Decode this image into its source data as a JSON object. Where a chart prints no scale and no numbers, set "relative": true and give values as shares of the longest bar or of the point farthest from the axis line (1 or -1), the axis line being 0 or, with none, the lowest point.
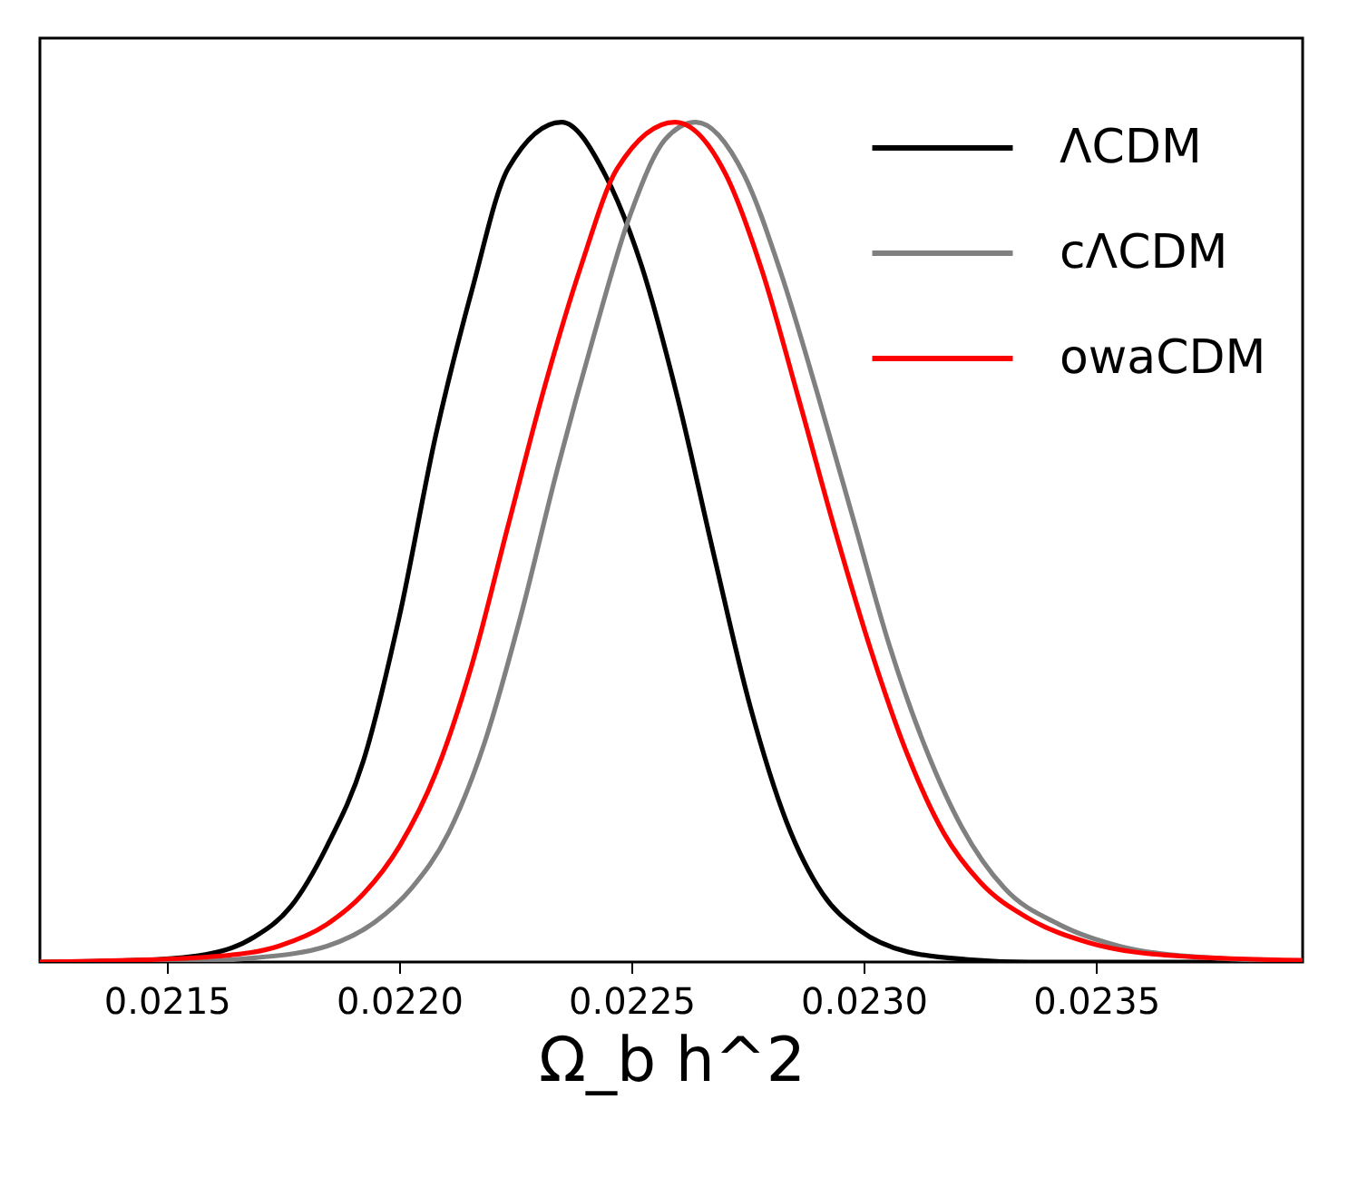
{
  "chart_data": {
    "type": "line",
    "xlabel": "Ω_b h^2",
    "relative": true,
    "tick_labels": "x",
    "grid": false,
    "legend": "top right",
    "line_style": "solid",
    "marker": "none",
    "xlim": [
      0.021227,
      0.023945
    ],
    "xticks": [
      0.0215,
      {
        "value": 0.022,
        "label": "0.0220"
      },
      0.0225,
      {
        "value": 0.023,
        "label": "0.0230"
      },
      0.0235
    ],
    "series": [
      {
        "name": "ΛCDM",
        "color": "#000000",
        "x": [
          0.021227,
          0.02148,
          0.021611,
          0.021689,
          0.021767,
          0.021845,
          0.021923,
          0.022001,
          0.022079,
          0.022157,
          0.022235,
          0.02235,
          0.022444,
          0.022522,
          0.0226,
          0.022678,
          0.022756,
          0.022834,
          0.022912,
          0.022991,
          0.023095,
          0.023224,
          0.023355,
          0.023945
        ],
        "values": [
          0,
          0.003,
          0.012,
          0.03,
          0.066,
          0.138,
          0.239,
          0.412,
          0.627,
          0.8,
          0.945,
          1,
          0.937,
          0.829,
          0.671,
          0.484,
          0.304,
          0.167,
          0.081,
          0.038,
          0.012,
          0.003,
          0,
          0
        ]
      },
      {
        "name": "cΛCDM",
        "color": "#808080",
        "x": [
          0.021227,
          0.021505,
          0.021689,
          0.021845,
          0.021949,
          0.022027,
          0.022106,
          0.022184,
          0.022262,
          0.02234,
          0.022418,
          0.022496,
          0.022574,
          0.022639,
          0.022743,
          0.022821,
          0.0229,
          0.022978,
          0.023056,
          0.023134,
          0.023212,
          0.023303,
          0.02342,
          0.02355,
          0.023746,
          0.023945
        ],
        "values": [
          0,
          0,
          0.005,
          0.019,
          0.048,
          0.088,
          0.153,
          0.261,
          0.412,
          0.585,
          0.743,
          0.887,
          0.98,
          1,
          0.937,
          0.822,
          0.678,
          0.527,
          0.376,
          0.254,
          0.16,
          0.088,
          0.045,
          0.019,
          0.005,
          0.001
        ]
      },
      {
        "name": "owaCDM",
        "color": "#ff0000",
        "x": [
          0.021227,
          0.021415,
          0.021611,
          0.021741,
          0.021845,
          0.021923,
          0.022001,
          0.022079,
          0.022157,
          0.022235,
          0.022314,
          0.022392,
          0.02247,
          0.022594,
          0.022704,
          0.022782,
          0.02286,
          0.022939,
          0.023017,
          0.023095,
          0.023173,
          0.023251,
          0.023355,
          0.023485,
          0.023681,
          0.023945
        ],
        "values": [
          0,
          0.002,
          0.007,
          0.019,
          0.045,
          0.081,
          0.138,
          0.225,
          0.354,
          0.52,
          0.686,
          0.829,
          0.945,
          1,
          0.937,
          0.822,
          0.671,
          0.513,
          0.369,
          0.246,
          0.153,
          0.095,
          0.052,
          0.023,
          0.007,
          0.002
        ]
      }
    ]
  }
}
